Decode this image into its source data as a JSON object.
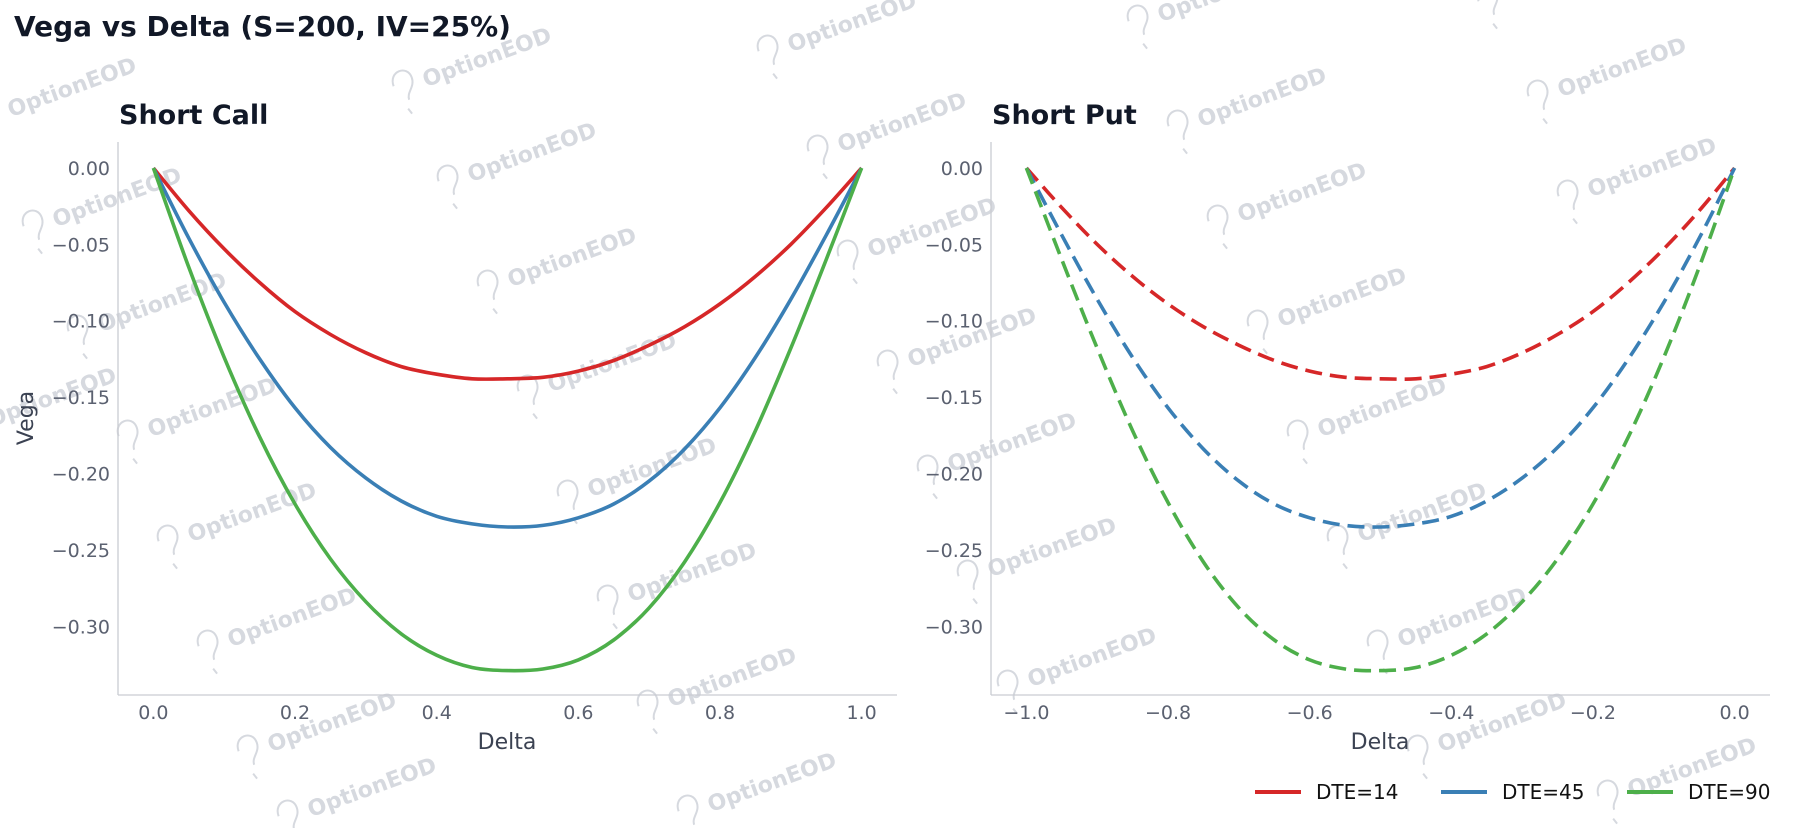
{
  "chart_title": "Vega vs Delta (S=200, IV=25%)",
  "watermark": "OptionEOD",
  "legend": [
    {
      "label": "DTE=14",
      "color": "#d62728"
    },
    {
      "label": "DTE=45",
      "color": "#3a7fb5"
    },
    {
      "label": "DTE=90",
      "color": "#4daf4a"
    }
  ],
  "chart_data": [
    {
      "type": "line",
      "title": "Short Call",
      "xlabel": "Delta",
      "ylabel": "Vega",
      "xlim": [
        -0.05,
        1.05
      ],
      "ylim": [
        -0.345,
        0.017
      ],
      "xticks": [
        "0.0",
        "0.2",
        "0.4",
        "0.6",
        "0.8",
        "1.0"
      ],
      "xtick_values": [
        0.0,
        0.2,
        0.4,
        0.6,
        0.8,
        1.0
      ],
      "yticks": [
        "0.00",
        "−0.05",
        "−0.10",
        "−0.15",
        "−0.20",
        "−0.25",
        "−0.30"
      ],
      "ytick_values": [
        0.0,
        -0.05,
        -0.1,
        -0.15,
        -0.2,
        -0.25,
        -0.3
      ],
      "line_style": "solid",
      "grid": false,
      "series": [
        {
          "name": "DTE=14",
          "color": "#d62728",
          "x": [
            0.0,
            0.05,
            0.1,
            0.15,
            0.2,
            0.25,
            0.3,
            0.35,
            0.4,
            0.45,
            0.5,
            0.55,
            0.6,
            0.65,
            0.7,
            0.75,
            0.8,
            0.85,
            0.9,
            0.95,
            1.0
          ],
          "y": [
            0.0,
            -0.028,
            -0.053,
            -0.075,
            -0.094,
            -0.109,
            -0.121,
            -0.13,
            -0.135,
            -0.138,
            -0.138,
            -0.137,
            -0.133,
            -0.126,
            -0.116,
            -0.104,
            -0.089,
            -0.071,
            -0.05,
            -0.026,
            0.0
          ]
        },
        {
          "name": "DTE=45",
          "color": "#3a7fb5",
          "x": [
            0.0,
            0.05,
            0.1,
            0.15,
            0.2,
            0.25,
            0.3,
            0.35,
            0.4,
            0.45,
            0.5,
            0.55,
            0.6,
            0.65,
            0.7,
            0.75,
            0.8,
            0.85,
            0.9,
            0.95,
            1.0
          ],
          "y": [
            0.0,
            -0.046,
            -0.088,
            -0.125,
            -0.157,
            -0.183,
            -0.203,
            -0.218,
            -0.228,
            -0.233,
            -0.235,
            -0.234,
            -0.229,
            -0.22,
            -0.205,
            -0.184,
            -0.157,
            -0.124,
            -0.086,
            -0.044,
            0.0
          ]
        },
        {
          "name": "DTE=90",
          "color": "#4daf4a",
          "x": [
            0.0,
            0.05,
            0.1,
            0.15,
            0.2,
            0.25,
            0.3,
            0.35,
            0.4,
            0.45,
            0.5,
            0.55,
            0.6,
            0.65,
            0.7,
            0.75,
            0.8,
            0.85,
            0.9,
            0.95,
            1.0
          ],
          "y": [
            0.0,
            -0.065,
            -0.124,
            -0.176,
            -0.22,
            -0.256,
            -0.284,
            -0.305,
            -0.319,
            -0.327,
            -0.329,
            -0.328,
            -0.322,
            -0.309,
            -0.288,
            -0.258,
            -0.219,
            -0.172,
            -0.118,
            -0.06,
            0.0
          ]
        }
      ]
    },
    {
      "type": "line",
      "title": "Short Put",
      "xlabel": "Delta",
      "ylabel": "",
      "xlim": [
        -1.05,
        0.05
      ],
      "ylim": [
        -0.345,
        0.017
      ],
      "xticks": [
        "−1.0",
        "−0.8",
        "−0.6",
        "−0.4",
        "−0.2",
        "0.0"
      ],
      "xtick_values": [
        -1.0,
        -0.8,
        -0.6,
        -0.4,
        -0.2,
        0.0
      ],
      "yticks": [
        "0.00",
        "−0.05",
        "−0.10",
        "−0.15",
        "−0.20",
        "−0.25",
        "−0.30"
      ],
      "ytick_values": [
        0.0,
        -0.05,
        -0.1,
        -0.15,
        -0.2,
        -0.25,
        -0.3
      ],
      "line_style": "dashed",
      "grid": false,
      "series": [
        {
          "name": "DTE=14",
          "color": "#d62728",
          "x": [
            -1.0,
            -0.95,
            -0.9,
            -0.85,
            -0.8,
            -0.75,
            -0.7,
            -0.65,
            -0.6,
            -0.55,
            -0.5,
            -0.45,
            -0.4,
            -0.35,
            -0.3,
            -0.25,
            -0.2,
            -0.15,
            -0.1,
            -0.05,
            0.0
          ],
          "y": [
            0.0,
            -0.026,
            -0.05,
            -0.071,
            -0.089,
            -0.104,
            -0.116,
            -0.126,
            -0.133,
            -0.137,
            -0.138,
            -0.138,
            -0.135,
            -0.13,
            -0.121,
            -0.109,
            -0.094,
            -0.075,
            -0.053,
            -0.028,
            0.0
          ]
        },
        {
          "name": "DTE=45",
          "color": "#3a7fb5",
          "x": [
            -1.0,
            -0.95,
            -0.9,
            -0.85,
            -0.8,
            -0.75,
            -0.7,
            -0.65,
            -0.6,
            -0.55,
            -0.5,
            -0.45,
            -0.4,
            -0.35,
            -0.3,
            -0.25,
            -0.2,
            -0.15,
            -0.1,
            -0.05,
            0.0
          ],
          "y": [
            0.0,
            -0.044,
            -0.086,
            -0.124,
            -0.157,
            -0.184,
            -0.205,
            -0.22,
            -0.229,
            -0.234,
            -0.235,
            -0.233,
            -0.228,
            -0.218,
            -0.203,
            -0.183,
            -0.157,
            -0.125,
            -0.088,
            -0.046,
            0.0
          ]
        },
        {
          "name": "DTE=90",
          "color": "#4daf4a",
          "x": [
            -1.0,
            -0.95,
            -0.9,
            -0.85,
            -0.8,
            -0.75,
            -0.7,
            -0.65,
            -0.6,
            -0.55,
            -0.5,
            -0.45,
            -0.4,
            -0.35,
            -0.3,
            -0.25,
            -0.2,
            -0.15,
            -0.1,
            -0.05,
            0.0
          ],
          "y": [
            0.0,
            -0.06,
            -0.118,
            -0.172,
            -0.219,
            -0.258,
            -0.288,
            -0.309,
            -0.322,
            -0.328,
            -0.329,
            -0.327,
            -0.319,
            -0.305,
            -0.284,
            -0.256,
            -0.22,
            -0.176,
            -0.124,
            -0.065,
            0.0
          ]
        }
      ]
    }
  ]
}
